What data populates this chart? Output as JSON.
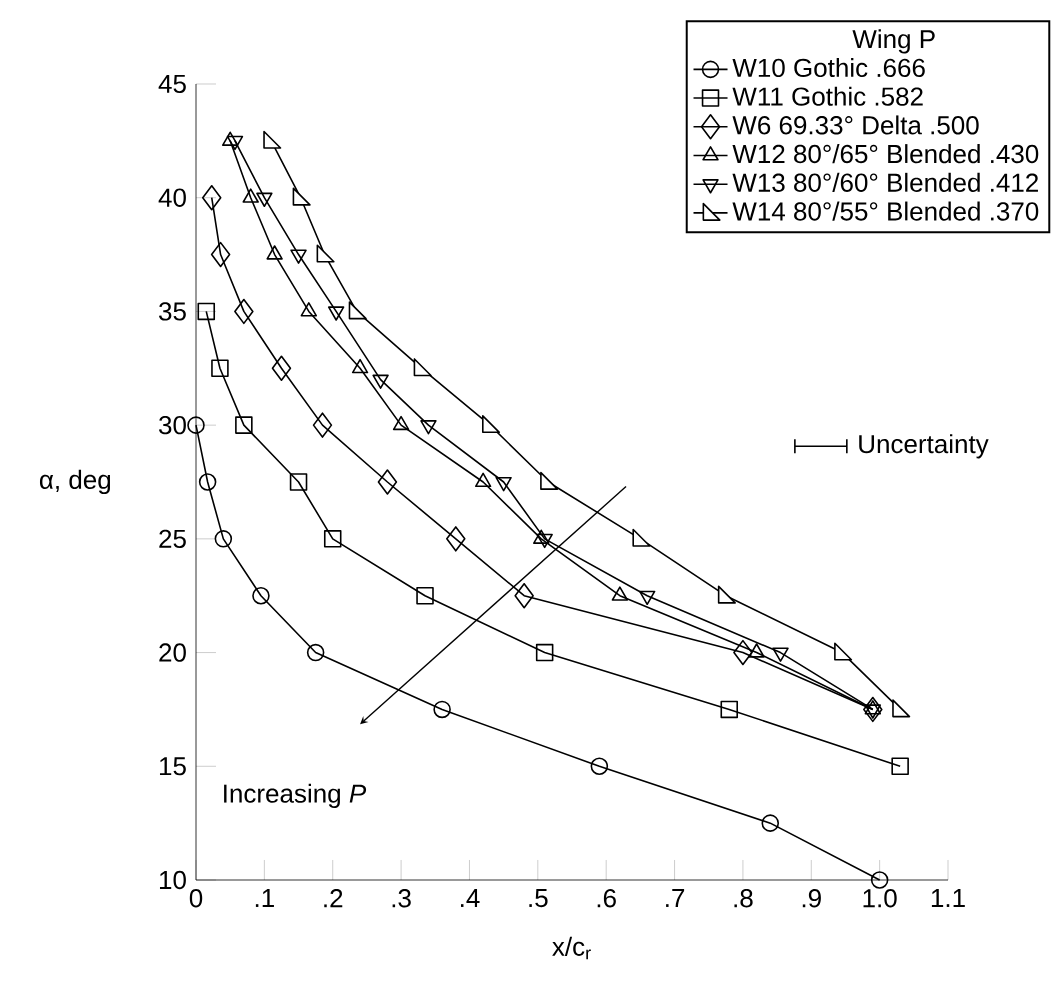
{
  "chart_data": {
    "type": "line",
    "xlabel": "x/c$_{r}$",
    "ylabel": "α, deg",
    "legend_title": "Wing P",
    "xlim": [
      0,
      1.1
    ],
    "ylim": [
      10,
      45
    ],
    "xticks": [
      0,
      {
        "value": 0.1,
        "label": ".1"
      },
      {
        "value": 0.2,
        "label": ".2"
      },
      {
        "value": 0.3,
        "label": ".3"
      },
      {
        "value": 0.4,
        "label": ".4"
      },
      {
        "value": 0.5,
        "label": ".5"
      },
      {
        "value": 0.6,
        "label": ".6"
      },
      {
        "value": 0.7,
        "label": ".7"
      },
      {
        "value": 0.8,
        "label": ".8"
      },
      {
        "value": 0.9,
        "label": ".9"
      },
      {
        "value": 1.0,
        "label": "1.0"
      },
      1.1
    ],
    "yticks": [
      10,
      15,
      20,
      25,
      30,
      35,
      40,
      45
    ],
    "grid": false,
    "legend": "top right",
    "annotations": [
      "Uncertainty",
      "Increasing *P*"
    ],
    "series": [
      {
        "name": "W10 Gothic .666",
        "color": "#000000",
        "marker": "circle",
        "x": [
          0,
          0.017,
          0.04,
          0.095,
          0.175,
          0.36,
          0.59,
          0.84,
          1.0
        ],
        "values": [
          30,
          27.5,
          25,
          22.5,
          20,
          17.5,
          15,
          12.5,
          10
        ]
      },
      {
        "name": "W11 Gothic .582",
        "color": "#000000",
        "marker": "square",
        "x": [
          0.015,
          0.035,
          0.07,
          0.15,
          0.2,
          0.335,
          0.51,
          0.78,
          1.03
        ],
        "values": [
          35,
          32.5,
          30,
          27.5,
          25,
          22.5,
          20,
          17.5,
          15
        ]
      },
      {
        "name": "W6 69.33° Delta .500",
        "color": "#000000",
        "marker": "diamond",
        "x": [
          0.023,
          0.036,
          0.07,
          0.125,
          0.185,
          0.28,
          0.38,
          0.48,
          0.8,
          0.99
        ],
        "values": [
          40,
          37.5,
          35,
          32.5,
          30,
          27.5,
          25,
          22.5,
          20,
          17.5
        ]
      },
      {
        "name": "W12 80°/65° Blended .430",
        "color": "#000000",
        "marker": "triangle",
        "x": [
          0.05,
          0.08,
          0.115,
          0.165,
          0.24,
          0.3,
          0.42,
          0.505,
          0.62,
          0.82,
          0.99
        ],
        "values": [
          42.5,
          40,
          37.5,
          35,
          32.5,
          30,
          27.5,
          25,
          22.5,
          20,
          17.5
        ]
      },
      {
        "name": "W13 80°/60° Blended .412",
        "color": "#000000",
        "marker": "triangle_down",
        "x": [
          0.057,
          0.1,
          0.15,
          0.205,
          0.27,
          0.34,
          0.45,
          0.51,
          0.66,
          0.855,
          0.99
        ],
        "values": [
          42.5,
          40,
          37.5,
          35,
          32,
          30,
          27.5,
          25,
          22.5,
          20,
          17.5
        ]
      },
      {
        "name": "W14 80°/55° Blended .370",
        "color": "#000000",
        "marker": "triangle_right",
        "x": [
          0.11,
          0.153,
          0.188,
          0.235,
          0.33,
          0.43,
          0.515,
          0.65,
          0.775,
          0.945,
          1.03
        ],
        "values": [
          42.5,
          40,
          37.5,
          35,
          32.5,
          30,
          27.5,
          25,
          22.5,
          20,
          17.5
        ]
      }
    ]
  }
}
